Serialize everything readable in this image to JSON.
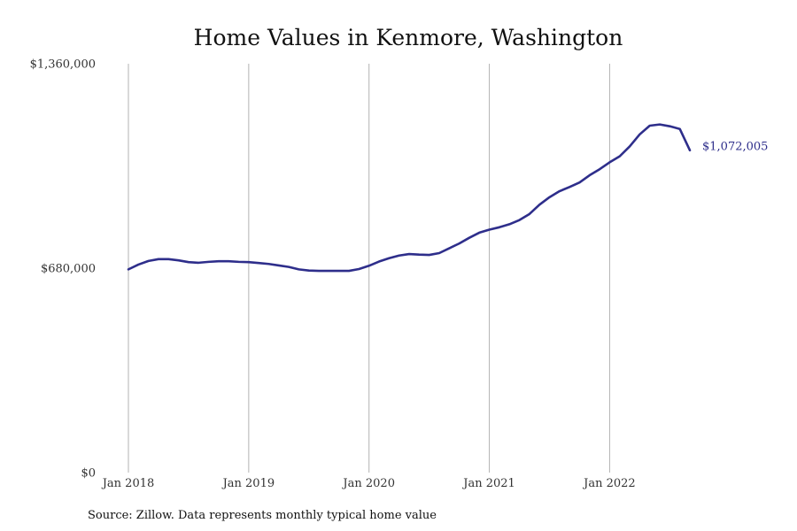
{
  "chart_data": {
    "type": "line",
    "title": "Home Values in Kenmore, Washington",
    "xlabel": "",
    "ylabel": "",
    "ylim": [
      0,
      1360000
    ],
    "xlim": [
      "2018-01",
      "2022-09"
    ],
    "y_ticks": [
      {
        "value": 0,
        "label": "$0"
      },
      {
        "value": 680000,
        "label": "$680,000"
      },
      {
        "value": 1360000,
        "label": "$1,360,000"
      }
    ],
    "x_ticks": [
      {
        "value": "2018-01",
        "label": "Jan 2018"
      },
      {
        "value": "2019-01",
        "label": "Jan 2019"
      },
      {
        "value": "2020-01",
        "label": "Jan 2020"
      },
      {
        "value": "2021-01",
        "label": "Jan 2021"
      },
      {
        "value": "2022-01",
        "label": "Jan 2022"
      }
    ],
    "grid": {
      "vertical": true,
      "horizontal": false
    },
    "legend": "none",
    "series": [
      {
        "color": "#2e2e8b",
        "end_label": "$1,072,005",
        "x": [
          "2018-01",
          "2018-02",
          "2018-03",
          "2018-04",
          "2018-05",
          "2018-06",
          "2018-07",
          "2018-08",
          "2018-09",
          "2018-10",
          "2018-11",
          "2018-12",
          "2019-01",
          "2019-02",
          "2019-03",
          "2019-04",
          "2019-05",
          "2019-06",
          "2019-07",
          "2019-08",
          "2019-09",
          "2019-10",
          "2019-11",
          "2019-12",
          "2020-01",
          "2020-02",
          "2020-03",
          "2020-04",
          "2020-05",
          "2020-06",
          "2020-07",
          "2020-08",
          "2020-09",
          "2020-10",
          "2020-11",
          "2020-12",
          "2021-01",
          "2021-02",
          "2021-03",
          "2021-04",
          "2021-05",
          "2021-06",
          "2021-07",
          "2021-08",
          "2021-09",
          "2021-10",
          "2021-11",
          "2021-12",
          "2022-01",
          "2022-02",
          "2022-03",
          "2022-04",
          "2022-05",
          "2022-06",
          "2022-07",
          "2022-08",
          "2022-09"
        ],
        "y": [
          676000,
          692000,
          704000,
          710000,
          710000,
          706000,
          700000,
          698000,
          701000,
          703000,
          703000,
          701000,
          700000,
          697000,
          694000,
          689000,
          684000,
          676000,
          672000,
          671000,
          671000,
          671000,
          671000,
          677000,
          688000,
          702000,
          713000,
          722000,
          727000,
          725000,
          724000,
          730000,
          746000,
          762000,
          781000,
          798000,
          808000,
          816000,
          826000,
          840000,
          860000,
          891000,
          916000,
          936000,
          950000,
          965000,
          989000,
          1009000,
          1032000,
          1052000,
          1085000,
          1125000,
          1154000,
          1158000,
          1152000,
          1143000,
          1072005
        ]
      }
    ]
  },
  "footer": {
    "source": "Source: Zillow. Data represents monthly typical home value"
  }
}
